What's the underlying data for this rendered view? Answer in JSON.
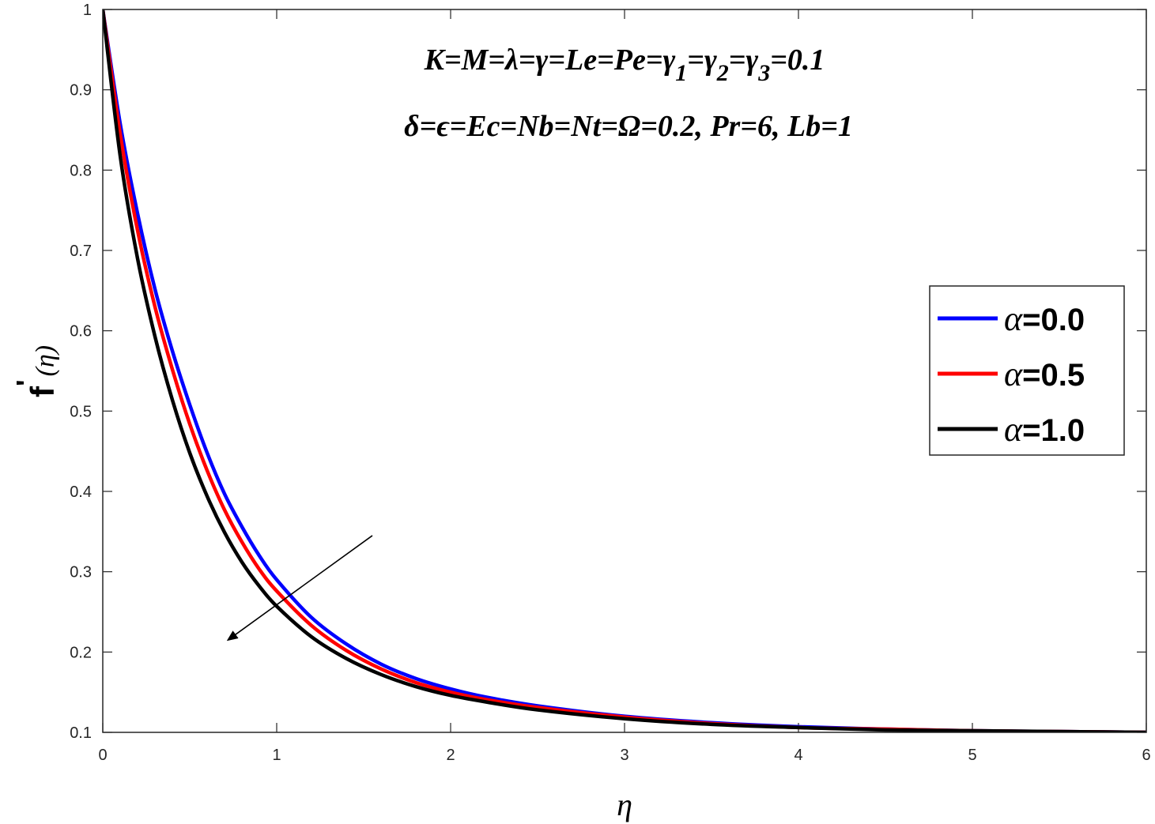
{
  "chart_data": {
    "type": "line",
    "title": "",
    "xlabel": "η",
    "ylabel": "f'(η)",
    "ylabel_parts": {
      "main": "f",
      "prime": "'",
      "arg": "(η)"
    },
    "xlim": [
      0,
      6
    ],
    "ylim": [
      0.1,
      1
    ],
    "x_ticks": [
      0,
      1,
      2,
      3,
      4,
      5,
      6
    ],
    "x_tick_labels": [
      "0",
      "1",
      "2",
      "3",
      "4",
      "5",
      "6"
    ],
    "y_ticks": [
      0.1,
      0.2,
      0.3,
      0.4,
      0.5,
      0.6,
      0.7,
      0.8,
      0.9,
      1
    ],
    "y_tick_labels": [
      "0.1",
      "0.2",
      "0.3",
      "0.4",
      "0.5",
      "0.6",
      "0.7",
      "0.8",
      "0.9",
      "1"
    ],
    "grid": false,
    "legend_position": "right",
    "annotations": [
      "K=M=λ=γ=Le=Pe=γ1=γ2=γ3=0.1",
      "δ=ϵ=Ec=Nb=Nt=Ω=0.2, Pr=6, Lb=1"
    ],
    "annotation_segments": [
      [
        {
          "t": "K=M=λ=γ=Le=Pe=γ"
        },
        {
          "t": "1",
          "sub": true
        },
        {
          "t": "=γ"
        },
        {
          "t": "2",
          "sub": true
        },
        {
          "t": "=γ"
        },
        {
          "t": "3",
          "sub": true
        },
        {
          "t": "=0.1"
        }
      ],
      [
        {
          "t": "δ=ϵ=Ec=Nb=Nt=Ω=0.2, Pr=6, Lb=1"
        }
      ]
    ],
    "arrow": {
      "from": [
        1.55,
        0.345
      ],
      "to": [
        0.72,
        0.215
      ],
      "meaning": "increasing α"
    },
    "x": [
      0,
      0.1,
      0.2,
      0.3,
      0.4,
      0.5,
      0.6,
      0.7,
      0.8,
      0.9,
      1.0,
      1.2,
      1.4,
      1.6,
      1.8,
      2.0,
      2.2,
      2.5,
      3.0,
      3.5,
      4.0,
      4.5,
      5.0,
      5.5,
      6.0
    ],
    "series": [
      {
        "name": "α=0.0",
        "legend_symbol": "α",
        "legend_value": "=0.0",
        "color": "#0000ff",
        "values": [
          1.0,
          0.858,
          0.746,
          0.652,
          0.575,
          0.508,
          0.448,
          0.397,
          0.356,
          0.32,
          0.29,
          0.243,
          0.21,
          0.185,
          0.167,
          0.154,
          0.144,
          0.133,
          0.12,
          0.112,
          0.107,
          0.104,
          0.102,
          0.101,
          0.1
        ]
      },
      {
        "name": "α=0.5",
        "legend_symbol": "α",
        "legend_value": "=0.5",
        "color": "#ff0000",
        "values": [
          1.0,
          0.845,
          0.725,
          0.63,
          0.552,
          0.484,
          0.426,
          0.377,
          0.337,
          0.303,
          0.276,
          0.233,
          0.202,
          0.179,
          0.162,
          0.15,
          0.141,
          0.131,
          0.119,
          0.111,
          0.106,
          0.104,
          0.102,
          0.101,
          0.1
        ]
      },
      {
        "name": "α=1.0",
        "legend_symbol": "α",
        "legend_value": "=1.0",
        "color": "#000000",
        "values": [
          1.0,
          0.818,
          0.69,
          0.593,
          0.514,
          0.448,
          0.394,
          0.349,
          0.312,
          0.282,
          0.257,
          0.219,
          0.192,
          0.172,
          0.157,
          0.146,
          0.138,
          0.128,
          0.117,
          0.11,
          0.106,
          0.103,
          0.102,
          0.101,
          0.1
        ]
      }
    ]
  }
}
